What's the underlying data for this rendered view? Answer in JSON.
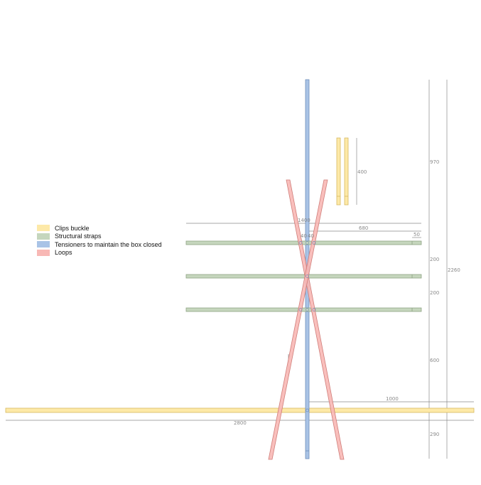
{
  "legend": [
    {
      "label": "Clips buckle",
      "color": "#fde9a8"
    },
    {
      "label": "Structural straps",
      "color": "#c5d6bd"
    },
    {
      "label": "Tensioners to maintain the box closed",
      "color": "#a9c3e6"
    },
    {
      "label": "Loops",
      "color": "#f8b8b5"
    }
  ],
  "dimensions": {
    "clip_length": "400",
    "strap_width": "1400",
    "strap_half": "680",
    "strap_end": "50",
    "center_gap_a": "40",
    "center_gap_b": "40",
    "strap_spacing_1": "200",
    "strap_spacing_2": "200",
    "top_height": "970",
    "lower_height": "600",
    "bottom_height": "290",
    "total_height": "2260",
    "base_right": "1000",
    "base_total": "2800"
  },
  "colors": {
    "clip_fill": "#fde9a8",
    "clip_stroke": "#d6b860",
    "strap_fill": "#c5d6bd",
    "strap_stroke": "#8fa385",
    "tensioner_fill": "#a9c3e6",
    "tensioner_stroke": "#6f8fba",
    "loop_fill": "#f8b8b5",
    "loop_stroke": "#cf7d79",
    "dim_line": "#8a8a8a"
  }
}
